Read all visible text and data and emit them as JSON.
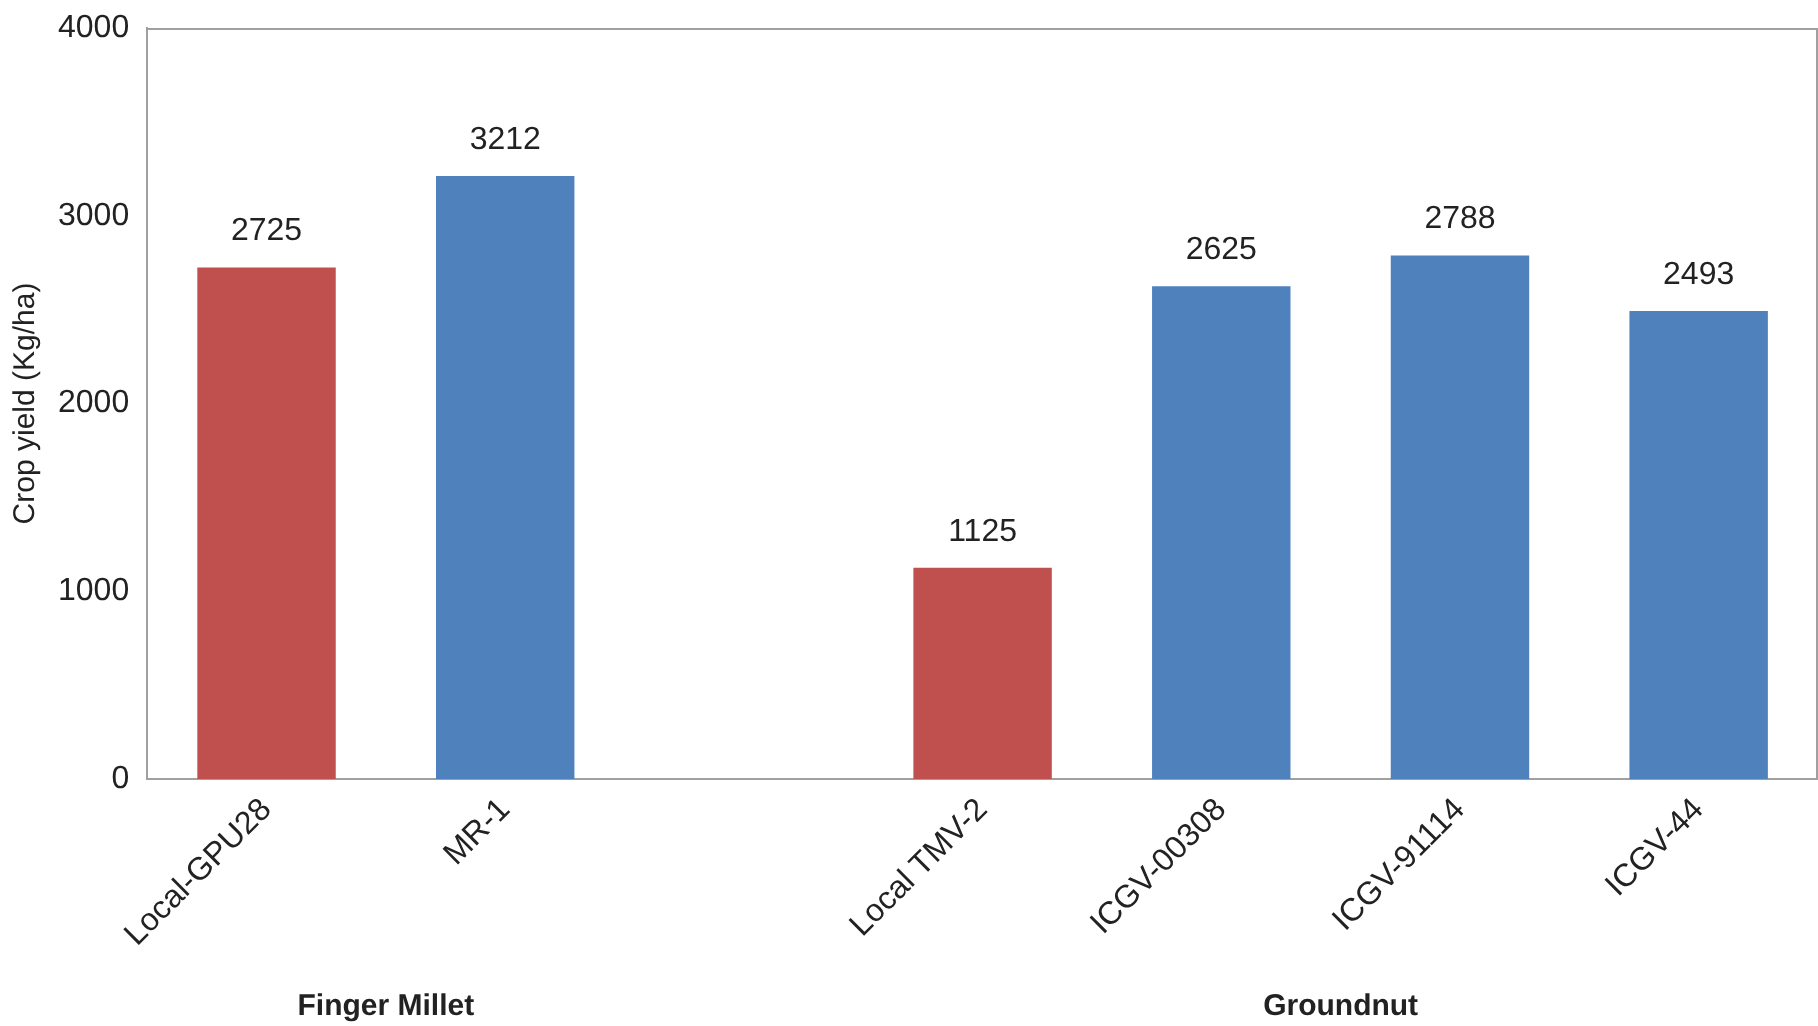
{
  "chart_data": {
    "type": "bar",
    "ylabel": "Crop yield (Kg/ha)",
    "categories": [
      "Local-GPU28",
      "MR-1",
      null,
      "Local TMV-2",
      "ICGV-00308",
      "ICGV-91114",
      "ICGV-44"
    ],
    "values": [
      2725,
      3212,
      null,
      1125,
      2625,
      2788,
      2493
    ],
    "colors": [
      "#c0504d",
      "#4f81bd",
      "#4f81bd",
      "#c0504d",
      "#4f81bd",
      "#4f81bd",
      "#4f81bd"
    ],
    "ylim": [
      0,
      4000
    ],
    "yticks": [
      0,
      1000,
      2000,
      3000,
      4000
    ],
    "grid": false,
    "legend": false,
    "data_labels": true,
    "annotations": [
      "Finger Millet",
      "Groundnut"
    ]
  }
}
